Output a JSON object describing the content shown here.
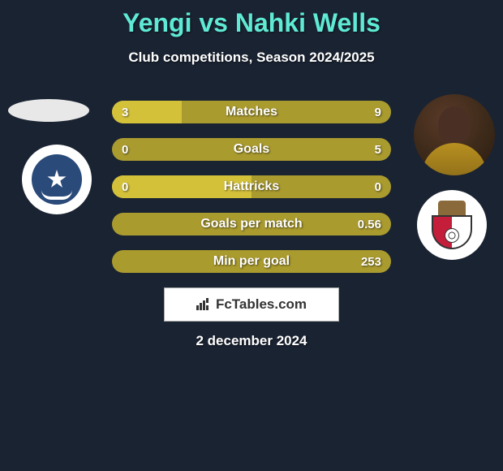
{
  "title": "Yengi vs Nahki Wells",
  "subtitle": "Club competitions, Season 2024/2025",
  "date": "2 december 2024",
  "brand": "FcTables.com",
  "colors": {
    "background": "#1a2332",
    "title": "#5eead4",
    "bar_light": "#d4c13a",
    "bar_dark": "#aa9b2f",
    "text": "#ffffff"
  },
  "bars": [
    {
      "label": "Matches",
      "left": "3",
      "right": "9",
      "left_pct": 25
    },
    {
      "label": "Goals",
      "left": "0",
      "right": "5",
      "left_pct": 0
    },
    {
      "label": "Hattricks",
      "left": "0",
      "right": "0",
      "left_pct": 50
    },
    {
      "label": "Goals per match",
      "left": "",
      "right": "0.56",
      "left_pct": 0
    },
    {
      "label": "Min per goal",
      "left": "",
      "right": "253",
      "left_pct": 0
    }
  ],
  "bar_style": {
    "height": 28,
    "radius": 14,
    "gap": 18,
    "font_size": 16
  }
}
